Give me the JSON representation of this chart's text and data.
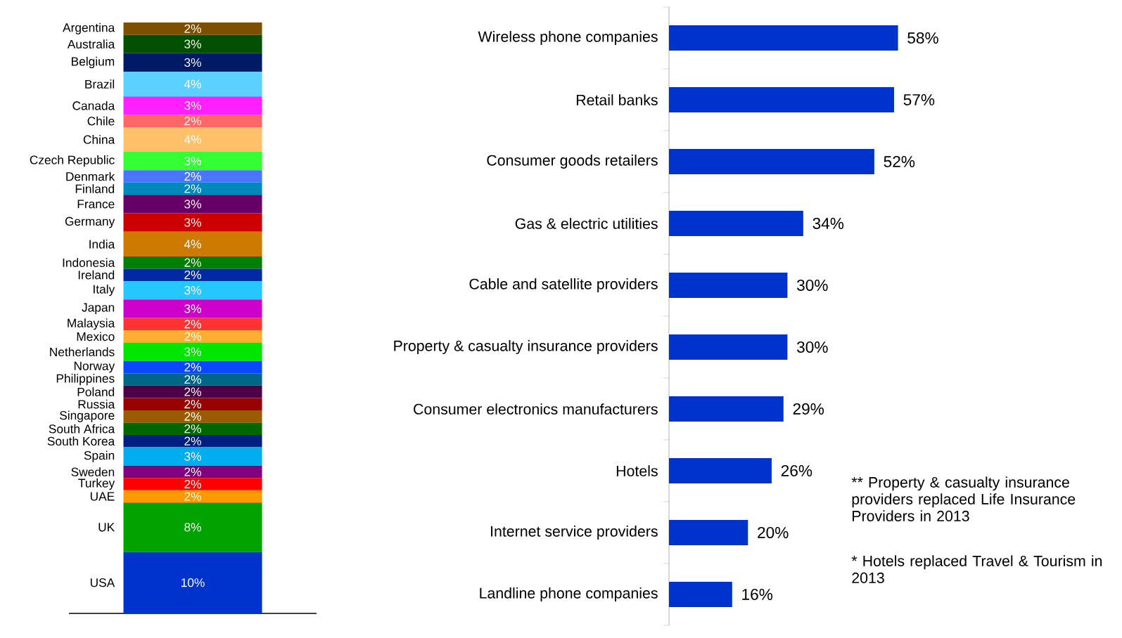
{
  "chart_data": [
    {
      "type": "bar",
      "stacked": true,
      "categories": [
        null
      ],
      "series": [
        {
          "name": "USA",
          "color": "#0033cc",
          "values": [
            10
          ],
          "value_labels": [
            "10%"
          ]
        },
        {
          "name": "UK",
          "color": "#00a300",
          "values": [
            8
          ],
          "value_labels": [
            "8%"
          ]
        },
        {
          "name": "UAE",
          "color": "#ff9900",
          "values": [
            2
          ],
          "value_labels": [
            "2%"
          ]
        },
        {
          "name": "Turkey",
          "color": "#ff0000",
          "values": [
            2
          ],
          "value_labels": [
            "2%"
          ]
        },
        {
          "name": "Sweden",
          "color": "#800080",
          "values": [
            2
          ],
          "value_labels": [
            "2%"
          ]
        },
        {
          "name": "Spain",
          "color": "#00aeef",
          "values": [
            3
          ],
          "value_labels": [
            "3%"
          ]
        },
        {
          "name": "South Korea",
          "color": "#001f80",
          "values": [
            2
          ],
          "value_labels": [
            "2%"
          ]
        },
        {
          "name": "South Africa",
          "color": "#006600",
          "values": [
            2
          ],
          "value_labels": [
            "2%"
          ]
        },
        {
          "name": "Singapore",
          "color": "#995c00",
          "values": [
            2
          ],
          "value_labels": [
            "2%"
          ]
        },
        {
          "name": "Russia",
          "color": "#990000",
          "values": [
            2
          ],
          "value_labels": [
            "2%"
          ]
        },
        {
          "name": "Poland",
          "color": "#4d0047",
          "values": [
            2
          ],
          "value_labels": [
            "2%"
          ]
        },
        {
          "name": "Philippines",
          "color": "#006688",
          "values": [
            2
          ],
          "value_labels": [
            "2%"
          ]
        },
        {
          "name": "Norway",
          "color": "#0a47ff",
          "values": [
            2
          ],
          "value_labels": [
            "2%"
          ]
        },
        {
          "name": "Netherlands",
          "color": "#00e600",
          "values": [
            3
          ],
          "value_labels": [
            "3%"
          ]
        },
        {
          "name": "Mexico",
          "color": "#ffad33",
          "values": [
            2
          ],
          "value_labels": [
            "2%"
          ]
        },
        {
          "name": "Malaysia",
          "color": "#ff3333",
          "values": [
            2
          ],
          "value_labels": [
            "2%"
          ]
        },
        {
          "name": "Japan",
          "color": "#cc00cc",
          "values": [
            3
          ],
          "value_labels": [
            "3%"
          ]
        },
        {
          "name": "Italy",
          "color": "#26c6ff",
          "values": [
            3
          ],
          "value_labels": [
            "3%"
          ]
        },
        {
          "name": "Ireland",
          "color": "#0029a3",
          "values": [
            2
          ],
          "value_labels": [
            "2%"
          ]
        },
        {
          "name": "Indonesia",
          "color": "#008000",
          "values": [
            2
          ],
          "value_labels": [
            "2%"
          ]
        },
        {
          "name": "India",
          "color": "#cc7a00",
          "values": [
            4
          ],
          "value_labels": [
            "4%"
          ]
        },
        {
          "name": "Germany",
          "color": "#cc0000",
          "values": [
            3
          ],
          "value_labels": [
            "3%"
          ]
        },
        {
          "name": "France",
          "color": "#660066",
          "values": [
            3
          ],
          "value_labels": [
            "3%"
          ]
        },
        {
          "name": "Finland",
          "color": "#0088bb",
          "values": [
            2
          ],
          "value_labels": [
            "2%"
          ]
        },
        {
          "name": "Denmark",
          "color": "#4a76ff",
          "values": [
            2
          ],
          "value_labels": [
            "2%"
          ]
        },
        {
          "name": "Czech Republic",
          "color": "#33ff33",
          "values": [
            3
          ],
          "value_labels": [
            "3%"
          ]
        },
        {
          "name": "China",
          "color": "#ffc06a",
          "values": [
            4
          ],
          "value_labels": [
            "4%"
          ]
        },
        {
          "name": "Chile",
          "color": "#ff6666",
          "values": [
            2
          ],
          "value_labels": [
            "2%"
          ]
        },
        {
          "name": "Canada",
          "color": "#ff1fff",
          "values": [
            3
          ],
          "value_labels": [
            "3%"
          ]
        },
        {
          "name": "Brazil",
          "color": "#5cd1ff",
          "values": [
            4
          ],
          "value_labels": [
            "4%"
          ]
        },
        {
          "name": "Belgium",
          "color": "#001a66",
          "values": [
            3
          ],
          "value_labels": [
            "3%"
          ]
        },
        {
          "name": "Australia",
          "color": "#005000",
          "values": [
            3
          ],
          "value_labels": [
            "3%"
          ]
        },
        {
          "name": "Argentina",
          "color": "#7f4f00",
          "values": [
            2
          ],
          "value_labels": [
            "2%"
          ]
        }
      ]
    },
    {
      "type": "bar",
      "orientation": "horizontal",
      "color": "#0033cc",
      "categories": [
        "Wireless phone companies",
        "Retail banks",
        "Consumer goods retailers",
        "Gas & electric utilities",
        "Cable and satellite providers",
        "Property & casualty insurance providers",
        "Consumer electronics manufacturers",
        "Hotels",
        "Internet service providers",
        "Landline phone companies"
      ],
      "values": [
        58,
        57,
        52,
        34,
        30,
        30,
        29,
        26,
        20,
        16
      ],
      "value_labels": [
        "58%",
        "57%",
        "52%",
        "34%",
        "30%",
        "30%",
        "29%",
        "26%",
        "20%",
        "16%"
      ],
      "annotations": [
        "** Property & casualty insurance providers replaced Life Insurance Providers in 2013",
        "* Hotels replaced Travel & Tourism in 2013"
      ]
    }
  ]
}
